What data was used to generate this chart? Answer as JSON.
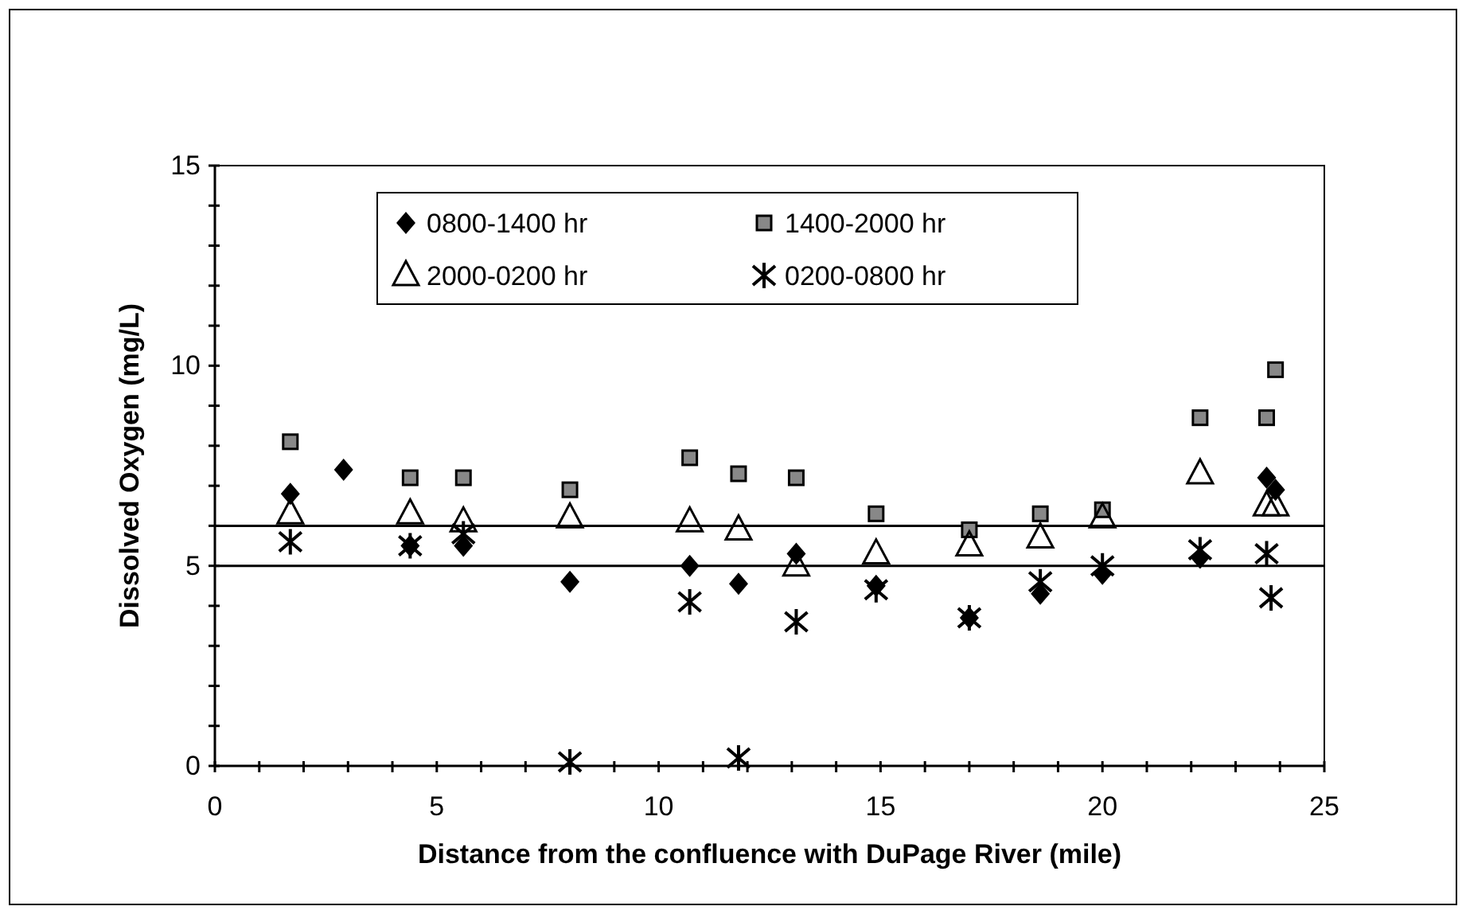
{
  "chart_data": {
    "type": "scatter",
    "xlabel": "Distance from the confluence with DuPage River (mile)",
    "ylabel": "Dissolved Oxygen (mg/L)",
    "xlim": [
      0,
      25
    ],
    "ylim": [
      0,
      15
    ],
    "xticks": [
      0,
      {
        "value": 1,
        "label": null
      },
      {
        "value": 2,
        "label": null
      },
      {
        "value": 3,
        "label": null
      },
      {
        "value": 4,
        "label": null
      },
      5,
      {
        "value": 6,
        "label": null
      },
      {
        "value": 7,
        "label": null
      },
      {
        "value": 8,
        "label": null
      },
      {
        "value": 9,
        "label": null
      },
      10,
      {
        "value": 11,
        "label": null
      },
      {
        "value": 12,
        "label": null
      },
      {
        "value": 13,
        "label": null
      },
      {
        "value": 14,
        "label": null
      },
      15,
      {
        "value": 16,
        "label": null
      },
      {
        "value": 17,
        "label": null
      },
      {
        "value": 18,
        "label": null
      },
      {
        "value": 19,
        "label": null
      },
      20,
      {
        "value": 21,
        "label": null
      },
      {
        "value": 22,
        "label": null
      },
      {
        "value": 23,
        "label": null
      },
      {
        "value": 24,
        "label": null
      },
      25
    ],
    "yticks": [
      0,
      {
        "value": 1,
        "label": null
      },
      {
        "value": 2,
        "label": null
      },
      {
        "value": 3,
        "label": null
      },
      {
        "value": 4,
        "label": null
      },
      5,
      {
        "value": 6,
        "label": null
      },
      {
        "value": 7,
        "label": null
      },
      {
        "value": 8,
        "label": null
      },
      {
        "value": 9,
        "label": null
      },
      10,
      {
        "value": 11,
        "label": null
      },
      {
        "value": 12,
        "label": null
      },
      {
        "value": 13,
        "label": null
      },
      {
        "value": 14,
        "label": null
      },
      15
    ],
    "legend": "top",
    "grid": false,
    "ref_lines": [
      {
        "axis": "y",
        "value": 6,
        "label": null
      },
      {
        "axis": "y",
        "value": 5,
        "label": null
      }
    ],
    "series": [
      {
        "name": "0800-1400 hr",
        "color": "#000000",
        "marker": "diamond",
        "x": [
          1.7,
          2.9,
          4.4,
          5.6,
          8.0,
          10.7,
          11.8,
          13.1,
          14.9,
          17.0,
          18.6,
          20.0,
          22.2,
          23.7,
          23.9
        ],
        "values": [
          6.8,
          7.4,
          5.5,
          5.5,
          4.6,
          5.0,
          4.55,
          5.3,
          4.5,
          3.7,
          4.3,
          4.8,
          5.2,
          7.2,
          6.9
        ]
      },
      {
        "name": "1400-2000 hr",
        "color": "#000000",
        "marker": "square",
        "x": [
          1.7,
          4.4,
          5.6,
          8.0,
          10.7,
          11.8,
          13.1,
          14.9,
          17.0,
          18.6,
          20.0,
          22.2,
          23.7,
          23.9
        ],
        "values": [
          8.1,
          7.2,
          7.2,
          6.9,
          7.7,
          7.3,
          7.2,
          6.3,
          5.9,
          6.3,
          6.4,
          8.7,
          8.7,
          9.9
        ]
      },
      {
        "name": "2000-0200 hr",
        "color": "#000000",
        "marker": "triangle",
        "x": [
          1.7,
          4.4,
          5.6,
          8.0,
          10.7,
          11.8,
          13.1,
          14.9,
          17.0,
          18.6,
          20.0,
          22.2,
          23.7,
          23.9
        ],
        "values": [
          6.3,
          6.3,
          6.1,
          6.2,
          6.1,
          5.9,
          5.0,
          5.3,
          5.5,
          5.7,
          6.2,
          7.3,
          6.5,
          6.5
        ]
      },
      {
        "name": "0200-0800 hr",
        "color": "#000000",
        "marker": "cross",
        "x": [
          1.7,
          4.4,
          5.6,
          8.0,
          10.7,
          11.8,
          13.1,
          14.9,
          17.0,
          18.6,
          20.0,
          22.2,
          23.7,
          23.8
        ],
        "values": [
          5.6,
          5.5,
          5.8,
          0.1,
          4.1,
          0.2,
          3.6,
          4.4,
          3.7,
          4.6,
          5.0,
          5.4,
          5.3,
          4.2
        ]
      }
    ]
  }
}
